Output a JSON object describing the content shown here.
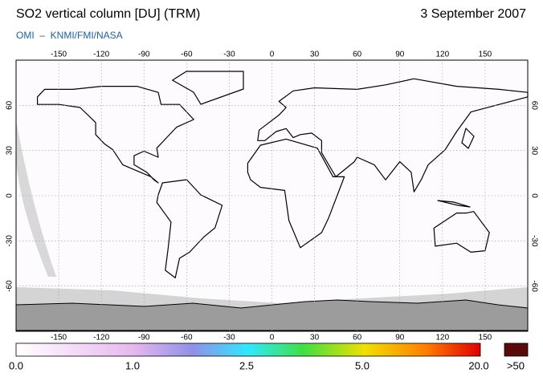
{
  "header": {
    "title": "SO2 vertical column [DU] (TRM)",
    "date": "3 September 2007",
    "subtitle": "OMI  –  KNMI/FMI/NASA"
  },
  "map": {
    "longitude_labels_top": [
      "-150",
      "-120",
      "-90",
      "-60",
      "-30",
      "0",
      "30",
      "60",
      "90",
      "120",
      "150"
    ],
    "longitude_labels_bottom": [
      "-150",
      "-120",
      "-90",
      "-60",
      "-30",
      "0",
      "30",
      "60",
      "90",
      "120",
      "150"
    ],
    "latitude_labels_left": [
      "60",
      "30",
      "0",
      "-30",
      "-60"
    ],
    "latitude_labels_right": [
      "60",
      "30",
      "0",
      "-30",
      "-60"
    ]
  },
  "colorbar": {
    "labels": [
      "0.0",
      "1.0",
      "2.5",
      "5.0",
      "20.0",
      ">50"
    ]
  }
}
